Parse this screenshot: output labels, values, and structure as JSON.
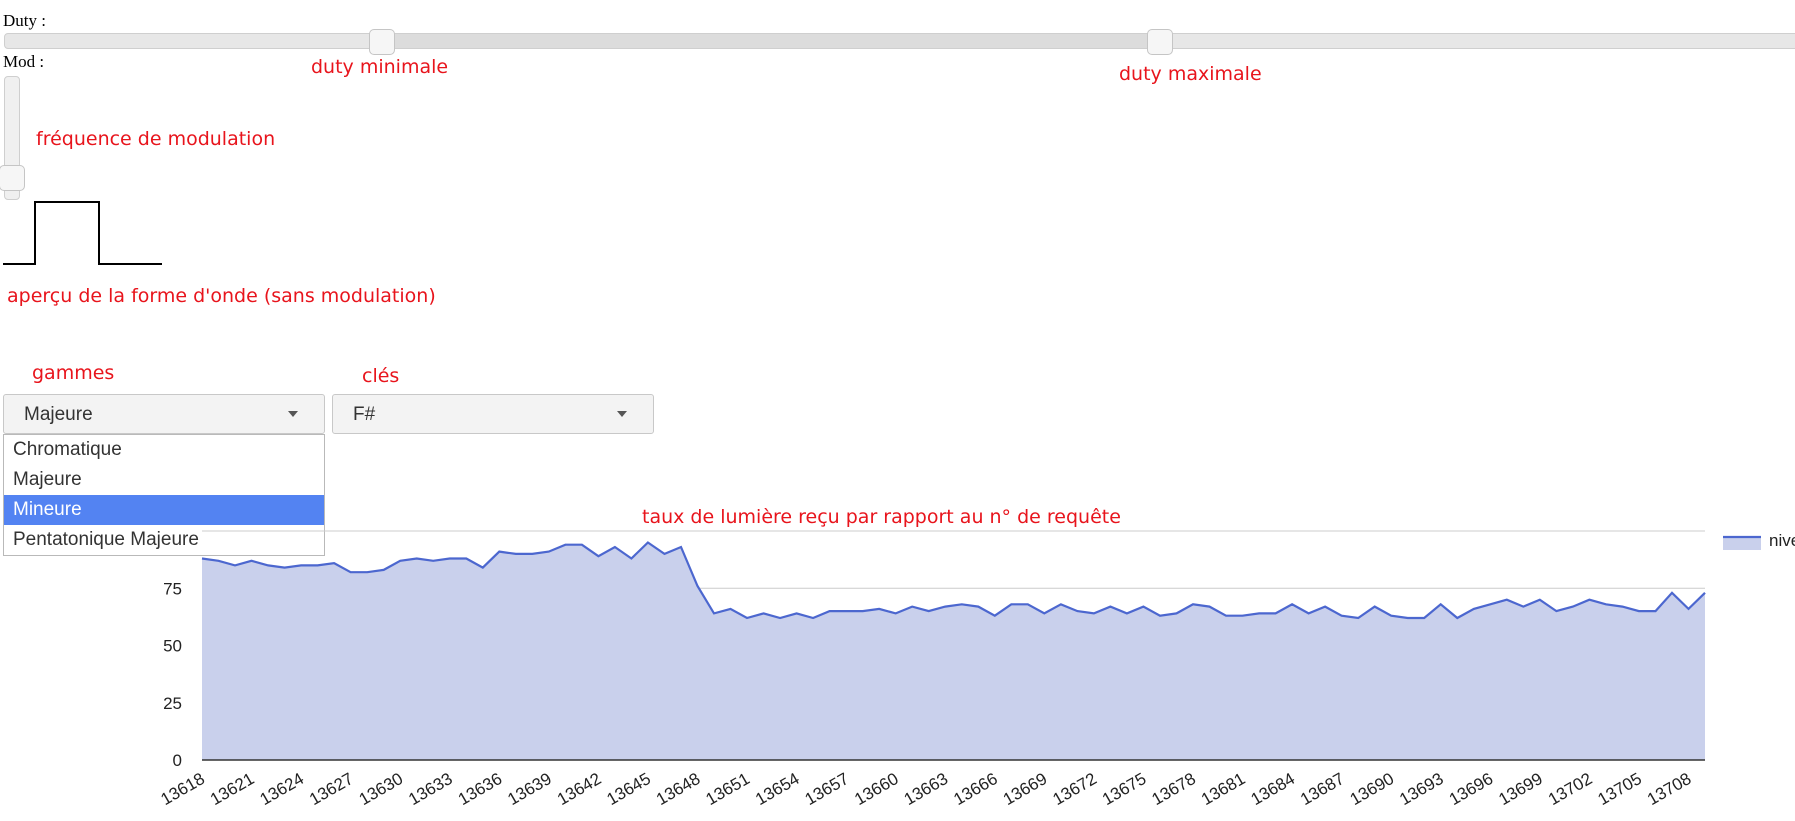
{
  "duty": {
    "label": "Duty :",
    "min_annotation": "duty minimale",
    "max_annotation": "duty maximale"
  },
  "mod": {
    "label": "Mod :",
    "annotation": "fréquence de modulation"
  },
  "waveform": {
    "annotation": "aperçu de la forme d'onde (sans modulation)"
  },
  "scales": {
    "heading": "gammes",
    "selected": "Majeure",
    "options": [
      "Chromatique",
      "Majeure",
      "Mineure",
      "Pentatonique Majeure"
    ],
    "highlighted": "Mineure"
  },
  "keys": {
    "heading": "clés",
    "selected": "F#"
  },
  "chart_title_annotation": "taux de lumière reçu par rapport au n° de requête",
  "colors": {
    "annotation": "#e8141c",
    "series_line": "#4c67cf",
    "series_fill": "#c9d0ec",
    "menu_highlight": "#5383f2"
  },
  "chart_data": {
    "type": "area",
    "legend": [
      "nive"
    ],
    "legend_position": "right",
    "ylim": [
      0,
      100
    ],
    "yticks": [
      0,
      25,
      50,
      75
    ],
    "grid": true,
    "xtick_labels": [
      "13618",
      "13621",
      "13624",
      "13627",
      "13630",
      "13633",
      "13636",
      "13639",
      "13642",
      "13645",
      "13648",
      "13651",
      "13654",
      "13657",
      "13660",
      "13663",
      "13666",
      "13669",
      "13672",
      "13675",
      "13678",
      "13681",
      "13684",
      "13687",
      "13690",
      "13693",
      "13696",
      "13699",
      "13702",
      "13705",
      "13708"
    ],
    "x_start": 13618,
    "x_end": 13709,
    "series": [
      {
        "name": "nive",
        "values": [
          88,
          87,
          85,
          87,
          85,
          84,
          85,
          85,
          86,
          82,
          82,
          83,
          87,
          88,
          87,
          88,
          88,
          84,
          91,
          90,
          90,
          91,
          94,
          94,
          89,
          93,
          88,
          95,
          90,
          93,
          76,
          64,
          66,
          62,
          64,
          62,
          64,
          62,
          65,
          65,
          65,
          66,
          64,
          67,
          65,
          67,
          68,
          67,
          63,
          68,
          68,
          64,
          68,
          65,
          64,
          67,
          64,
          67,
          63,
          64,
          68,
          67,
          63,
          63,
          64,
          64,
          68,
          64,
          67,
          63,
          62,
          67,
          63,
          62,
          62,
          68,
          62,
          66,
          68,
          70,
          67,
          70,
          65,
          67,
          70,
          68,
          67,
          65,
          65,
          73,
          66,
          73
        ]
      }
    ]
  }
}
